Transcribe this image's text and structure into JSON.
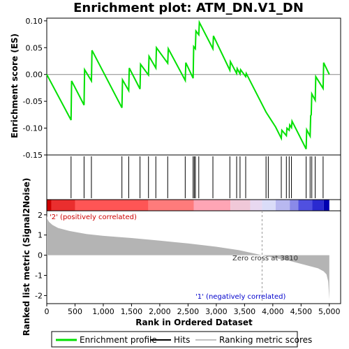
{
  "chart_data": {
    "type": "line",
    "title": "Enrichment plot: ATM_DN.V1_DN",
    "top_panel": {
      "ylabel": "Enrichment score (ES)",
      "ylim": [
        -0.15,
        0.105
      ],
      "yticks": [
        -0.15,
        -0.1,
        -0.05,
        0.0,
        0.05,
        0.1
      ],
      "ytick_labels": [
        "-0.15",
        "-0.10",
        "-0.05",
        "0.00",
        "0.05",
        "0.10"
      ],
      "line_color": "#00e000",
      "es_profile": [
        [
          0,
          0.0
        ],
        [
          430,
          -0.085
        ],
        [
          440,
          -0.012
        ],
        [
          660,
          -0.057
        ],
        [
          670,
          0.009
        ],
        [
          790,
          -0.012
        ],
        [
          800,
          0.045
        ],
        [
          1330,
          -0.062
        ],
        [
          1340,
          -0.01
        ],
        [
          1450,
          -0.03
        ],
        [
          1460,
          0.012
        ],
        [
          1650,
          -0.027
        ],
        [
          1660,
          0.019
        ],
        [
          1800,
          -0.001
        ],
        [
          1810,
          0.034
        ],
        [
          1930,
          0.012
        ],
        [
          1940,
          0.05
        ],
        [
          2140,
          0.021
        ],
        [
          2150,
          0.048
        ],
        [
          2450,
          -0.011
        ],
        [
          2460,
          0.022
        ],
        [
          2590,
          -0.007
        ],
        [
          2600,
          0.052
        ],
        [
          2630,
          0.048
        ],
        [
          2640,
          0.081
        ],
        [
          2690,
          0.074
        ],
        [
          2700,
          0.097
        ],
        [
          2940,
          0.048
        ],
        [
          2950,
          0.072
        ],
        [
          3240,
          0.008
        ],
        [
          3250,
          0.024
        ],
        [
          3360,
          0.002
        ],
        [
          3370,
          0.011
        ],
        [
          3420,
          0.001
        ],
        [
          3430,
          0.009
        ],
        [
          3520,
          -0.004
        ],
        [
          3530,
          0.002
        ],
        [
          3880,
          -0.07
        ],
        [
          4050,
          -0.098
        ],
        [
          4150,
          -0.119
        ],
        [
          4160,
          -0.104
        ],
        [
          4240,
          -0.114
        ],
        [
          4250,
          -0.1
        ],
        [
          4290,
          -0.104
        ],
        [
          4300,
          -0.094
        ],
        [
          4330,
          -0.099
        ],
        [
          4340,
          -0.087
        ],
        [
          4590,
          -0.139
        ],
        [
          4600,
          -0.103
        ],
        [
          4660,
          -0.115
        ],
        [
          4670,
          -0.077
        ],
        [
          4680,
          -0.075
        ],
        [
          4690,
          -0.036
        ],
        [
          4750,
          -0.048
        ],
        [
          4760,
          -0.004
        ],
        [
          4890,
          -0.026
        ],
        [
          4900,
          0.022
        ],
        [
          5000,
          0.0
        ]
      ]
    },
    "hits": [
      430,
      660,
      790,
      1330,
      1450,
      1650,
      1800,
      1930,
      2140,
      2450,
      2590,
      2610,
      2630,
      2690,
      2940,
      3240,
      3360,
      3420,
      3520,
      3880,
      3920,
      4150,
      4240,
      4290,
      4330,
      4590,
      4660,
      4690,
      4750,
      4890
    ],
    "colorbar": {
      "n": 5000,
      "stops": [
        {
          "from": 0,
          "to": 80,
          "color": "#cc0000"
        },
        {
          "from": 80,
          "to": 500,
          "color": "#ea2e2e"
        },
        {
          "from": 500,
          "to": 1800,
          "color": "#ff5555"
        },
        {
          "from": 1800,
          "to": 2600,
          "color": "#ff7b7b"
        },
        {
          "from": 2600,
          "to": 3250,
          "color": "#ffa5b5"
        },
        {
          "from": 3250,
          "to": 3600,
          "color": "#f0c8d8"
        },
        {
          "from": 3600,
          "to": 3810,
          "color": "#e8d8f0"
        },
        {
          "from": 3810,
          "to": 4050,
          "color": "#dadcf8"
        },
        {
          "from": 4050,
          "to": 4300,
          "color": "#b8b8f0"
        },
        {
          "from": 4300,
          "to": 4450,
          "color": "#8a8ae8"
        },
        {
          "from": 4450,
          "to": 4700,
          "color": "#5050e0"
        },
        {
          "from": 4700,
          "to": 4900,
          "color": "#2a2ad0"
        },
        {
          "from": 4900,
          "to": 5000,
          "color": "#0000b0"
        }
      ]
    },
    "bottom_panel": {
      "ylabel": "Ranked list metric (Signal2Noise)",
      "xlabel": "Rank in Ordered Dataset",
      "ylim": [
        -2.4,
        2.2
      ],
      "yticks": [
        -2,
        -1,
        0,
        1,
        2
      ],
      "ytick_labels": [
        "-2",
        "-1",
        "0",
        "1",
        "2"
      ],
      "xlim": [
        0,
        5200
      ],
      "xticks": [
        0,
        500,
        1000,
        1500,
        2000,
        2500,
        3000,
        3500,
        4000,
        4500,
        5000
      ],
      "xtick_labels": [
        "0",
        "500",
        "1,000",
        "1,500",
        "2,000",
        "2,500",
        "3,000",
        "3,500",
        "4,000",
        "4,500",
        "5,000"
      ],
      "metric_curve": [
        [
          0,
          1.95
        ],
        [
          10,
          1.8
        ],
        [
          40,
          1.65
        ],
        [
          100,
          1.5
        ],
        [
          200,
          1.35
        ],
        [
          400,
          1.2
        ],
        [
          700,
          1.05
        ],
        [
          1000,
          0.96
        ],
        [
          1500,
          0.85
        ],
        [
          2000,
          0.72
        ],
        [
          2500,
          0.58
        ],
        [
          3000,
          0.42
        ],
        [
          3400,
          0.25
        ],
        [
          3810,
          0.0
        ],
        [
          4000,
          -0.12
        ],
        [
          4300,
          -0.28
        ],
        [
          4600,
          -0.5
        ],
        [
          4800,
          -0.65
        ],
        [
          4900,
          -0.8
        ],
        [
          4950,
          -0.95
        ],
        [
          4980,
          -1.3
        ],
        [
          5000,
          -2.2
        ]
      ],
      "zero_cross": 3810,
      "labels": {
        "pos": "'2' (positively correlated)",
        "neg": "'1' (negatively correlated)",
        "zero": "Zero cross at 3810"
      },
      "pos_color": "#cc0000",
      "neg_color": "#0000cc"
    },
    "legend": {
      "items": [
        {
          "label": "Enrichment profile",
          "color": "#00e000",
          "kind": "line"
        },
        {
          "label": "Hits",
          "color": "#000000",
          "kind": "line"
        },
        {
          "label": "Ranking metric scores",
          "color": "#c0c0c0",
          "kind": "line"
        }
      ]
    }
  }
}
